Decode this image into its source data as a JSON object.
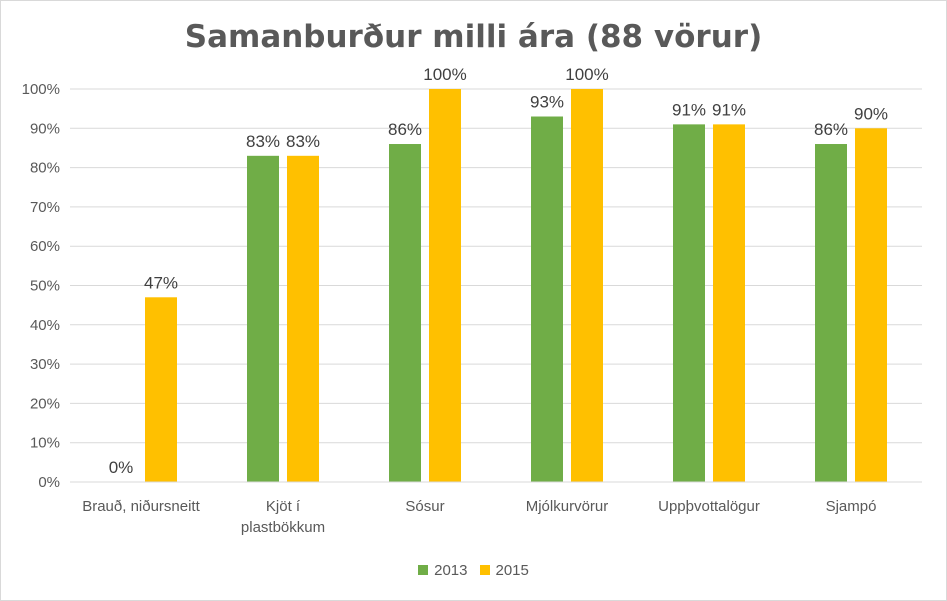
{
  "chart_data": {
    "type": "bar",
    "title": "Samanburður milli ára (88 vörur)",
    "categories": [
      [
        "Brauð, niðursneitt"
      ],
      [
        "Kjöt í",
        "plastbökkum"
      ],
      [
        "Sósur"
      ],
      [
        "Mjólkurvörur"
      ],
      [
        "Uppþvottalögur"
      ],
      [
        "Sjampó"
      ]
    ],
    "series": [
      {
        "name": "2013",
        "color": "#70ad47",
        "values": [
          0,
          83,
          86,
          93,
          91,
          86
        ],
        "labels": [
          "0%",
          "83%",
          "86%",
          "93%",
          "91%",
          "86%"
        ]
      },
      {
        "name": "2015",
        "color": "#ffc000",
        "values": [
          47,
          83,
          100,
          100,
          91,
          90
        ],
        "labels": [
          "47%",
          "83%",
          "100%",
          "100%",
          "91%",
          "90%"
        ]
      }
    ],
    "ylim": [
      0,
      100
    ],
    "yticks": [
      "0%",
      "10%",
      "20%",
      "30%",
      "40%",
      "50%",
      "60%",
      "70%",
      "80%",
      "90%",
      "100%"
    ],
    "grid": true,
    "legend_position": "bottom"
  }
}
